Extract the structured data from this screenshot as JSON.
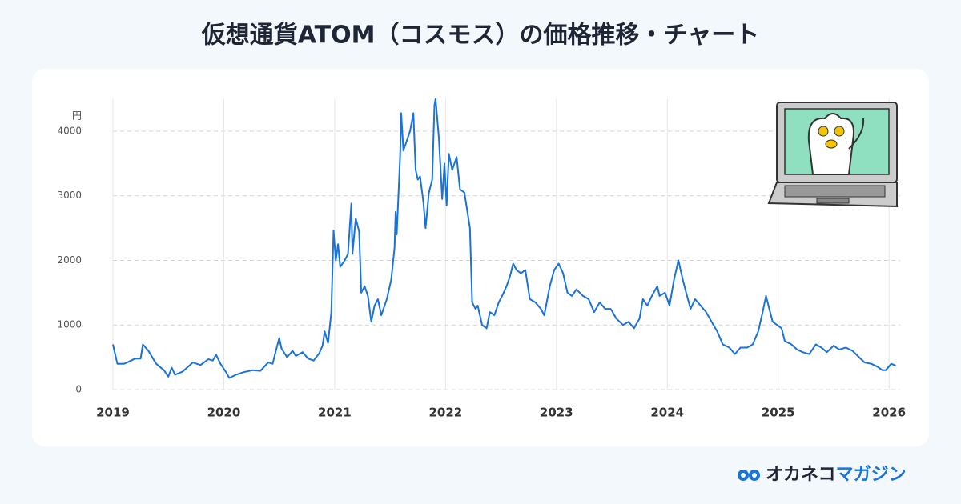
{
  "chart_data": {
    "type": "line",
    "title": "仮想通貨ATOM（コスモス）の価格推移・チャート",
    "y_unit": "円",
    "x": [
      2019.0,
      2019.04,
      2019.1,
      2019.14,
      2019.2,
      2019.25,
      2019.27,
      2019.32,
      2019.39,
      2019.46,
      2019.5,
      2019.53,
      2019.56,
      2019.63,
      2019.72,
      2019.79,
      2019.86,
      2019.9,
      2019.93,
      2019.97,
      2020.02,
      2020.05,
      2020.11,
      2020.18,
      2020.26,
      2020.33,
      2020.4,
      2020.44,
      2020.47,
      2020.5,
      2020.52,
      2020.57,
      2020.62,
      2020.65,
      2020.71,
      2020.76,
      2020.81,
      2020.86,
      2020.89,
      2020.91,
      2020.94,
      2020.97,
      2020.99,
      2021.01,
      2021.03,
      2021.05,
      2021.09,
      2021.12,
      2021.15,
      2021.16,
      2021.19,
      2021.22,
      2021.24,
      2021.27,
      2021.3,
      2021.33,
      2021.36,
      2021.39,
      2021.42,
      2021.47,
      2021.51,
      2021.54,
      2021.55,
      2021.56,
      2021.59,
      2021.6,
      2021.62,
      2021.65,
      2021.68,
      2021.71,
      2021.73,
      2021.75,
      2021.77,
      2021.8,
      2021.82,
      2021.85,
      2021.88,
      2021.9,
      2021.91,
      2021.94,
      2021.97,
      2021.99,
      2022.01,
      2022.03,
      2022.06,
      2022.1,
      2022.13,
      2022.17,
      2022.22,
      2022.24,
      2022.27,
      2022.29,
      2022.33,
      2022.37,
      2022.4,
      2022.44,
      2022.48,
      2022.51,
      2022.55,
      2022.58,
      2022.61,
      2022.64,
      2022.68,
      2022.72,
      2022.76,
      2022.81,
      2022.86,
      2022.89,
      2022.94,
      2022.98,
      2023.02,
      2023.06,
      2023.1,
      2023.14,
      2023.18,
      2023.24,
      2023.29,
      2023.34,
      2023.39,
      2023.44,
      2023.49,
      2023.54,
      2023.6,
      2023.65,
      2023.7,
      2023.75,
      2023.78,
      2023.82,
      2023.86,
      2023.91,
      2023.93,
      2023.98,
      2024.02,
      2024.06,
      2024.1,
      2024.14,
      2024.17,
      2024.21,
      2024.25,
      2024.3,
      2024.35,
      2024.4,
      2024.45,
      2024.5,
      2024.56,
      2024.61,
      2024.66,
      2024.72,
      2024.77,
      2024.82,
      2024.86,
      2024.89,
      2024.92,
      2024.95,
      2024.99,
      2025.03,
      2025.06,
      2025.12,
      2025.17,
      2025.22,
      2025.28,
      2025.34,
      2025.39,
      2025.44,
      2025.5,
      2025.55,
      2025.61,
      2025.67,
      2025.73,
      2025.78,
      2025.84,
      2025.9,
      2025.94,
      2025.97,
      2026.02,
      2026.06
    ],
    "series": [
      {
        "color": "#1a73d9",
        "values": [
          700,
          400,
          400,
          430,
          480,
          480,
          700,
          600,
          400,
          300,
          200,
          340,
          230,
          280,
          420,
          380,
          470,
          450,
          540,
          400,
          270,
          180,
          230,
          270,
          300,
          290,
          420,
          400,
          600,
          800,
          640,
          500,
          600,
          520,
          580,
          480,
          450,
          560,
          680,
          900,
          720,
          1200,
          2460,
          2000,
          2250,
          1900,
          2000,
          2100,
          2880,
          2100,
          2650,
          2450,
          1500,
          1600,
          1450,
          1050,
          1300,
          1400,
          1150,
          1400,
          1700,
          2200,
          2750,
          2400,
          3600,
          4280,
          3700,
          3850,
          4000,
          4280,
          3400,
          3250,
          3300,
          2900,
          2500,
          3050,
          3250,
          4400,
          4500,
          3900,
          2950,
          3500,
          2850,
          3650,
          3400,
          3600,
          3100,
          3050,
          2500,
          1350,
          1250,
          1300,
          1000,
          950,
          1200,
          1150,
          1350,
          1450,
          1600,
          1750,
          1950,
          1850,
          1800,
          1850,
          1400,
          1350,
          1250,
          1150,
          1600,
          1850,
          1950,
          1800,
          1500,
          1450,
          1550,
          1450,
          1400,
          1200,
          1350,
          1250,
          1250,
          1100,
          1000,
          1050,
          950,
          1100,
          1400,
          1300,
          1450,
          1600,
          1450,
          1500,
          1300,
          1700,
          2000,
          1700,
          1500,
          1250,
          1400,
          1300,
          1200,
          1050,
          900,
          700,
          650,
          550,
          650,
          650,
          700,
          900,
          1200,
          1450,
          1250,
          1050,
          1000,
          950,
          750,
          700,
          620,
          580,
          550,
          700,
          650,
          580,
          680,
          620,
          650,
          600,
          500,
          420,
          400,
          350,
          300,
          300,
          400,
          370
        ]
      }
    ],
    "xlim": [
      2019,
      2026.1
    ],
    "xticks": [
      2019,
      2020,
      2021,
      2022,
      2023,
      2024,
      2025,
      2026
    ],
    "ylim": [
      0,
      4500
    ],
    "yticks": [
      0,
      1000,
      2000,
      3000,
      4000
    ],
    "grid": true
  },
  "brand": [
    "オカネコ",
    "マガジン"
  ]
}
